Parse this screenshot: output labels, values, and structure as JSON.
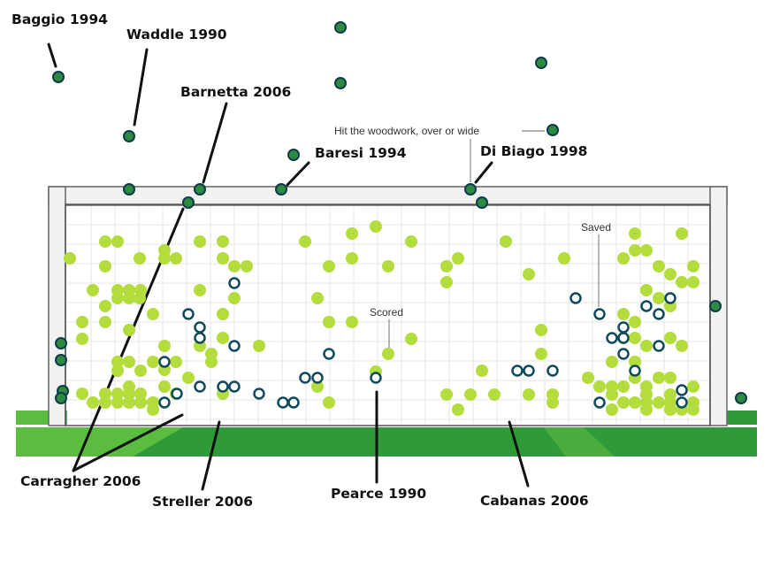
{
  "chart_data": {
    "type": "scatter",
    "title": "",
    "xlabel": "",
    "ylabel": "",
    "legend": {
      "scored": "Scored",
      "saved": "Saved",
      "missed": "Hit the woodwork, over or wide"
    },
    "colors": {
      "scored": "#b2dd3c",
      "saved_stroke": "#0e4a5c",
      "missed_fill": "#2e8a42",
      "missed_stroke": "#0a3c4a",
      "grass_dark": "#2f9a3a",
      "grass_light": "#57b83f",
      "post": "#f2f2f2"
    },
    "scored": [
      [
        79,
        292
      ],
      [
        119,
        273
      ],
      [
        133,
        273
      ],
      [
        186,
        283
      ],
      [
        119,
        301
      ],
      [
        158,
        292
      ],
      [
        186,
        292
      ],
      [
        199,
        292
      ],
      [
        226,
        273
      ],
      [
        252,
        273
      ],
      [
        252,
        292
      ],
      [
        265,
        301
      ],
      [
        279,
        301
      ],
      [
        226,
        328
      ],
      [
        105,
        328
      ],
      [
        133,
        328
      ],
      [
        146,
        328
      ],
      [
        159,
        328
      ],
      [
        133,
        337
      ],
      [
        146,
        337
      ],
      [
        158,
        337
      ],
      [
        119,
        346
      ],
      [
        265,
        337
      ],
      [
        345,
        273
      ],
      [
        398,
        264
      ],
      [
        425,
        256
      ],
      [
        465,
        273
      ],
      [
        372,
        301
      ],
      [
        398,
        292
      ],
      [
        439,
        301
      ],
      [
        359,
        337
      ],
      [
        93,
        364
      ],
      [
        119,
        364
      ],
      [
        173,
        355
      ],
      [
        252,
        355
      ],
      [
        372,
        364
      ],
      [
        398,
        364
      ],
      [
        93,
        383
      ],
      [
        146,
        373
      ],
      [
        186,
        391
      ],
      [
        226,
        391
      ],
      [
        239,
        400
      ],
      [
        252,
        382
      ],
      [
        293,
        391
      ],
      [
        133,
        409
      ],
      [
        146,
        409
      ],
      [
        173,
        409
      ],
      [
        159,
        419
      ],
      [
        199,
        409
      ],
      [
        213,
        427
      ],
      [
        239,
        409
      ],
      [
        133,
        419
      ],
      [
        146,
        437
      ],
      [
        186,
        437
      ],
      [
        252,
        445
      ],
      [
        199,
        445
      ],
      [
        93,
        445
      ],
      [
        105,
        455
      ],
      [
        119,
        445
      ],
      [
        119,
        455
      ],
      [
        133,
        445
      ],
      [
        146,
        445
      ],
      [
        133,
        455
      ],
      [
        146,
        455
      ],
      [
        159,
        445
      ],
      [
        159,
        455
      ],
      [
        173,
        455
      ],
      [
        173,
        463
      ],
      [
        186,
        418
      ],
      [
        372,
        455
      ],
      [
        359,
        437
      ],
      [
        439,
        400
      ],
      [
        465,
        383
      ],
      [
        425,
        420
      ],
      [
        505,
        301
      ],
      [
        518,
        292
      ],
      [
        572,
        273
      ],
      [
        505,
        319
      ],
      [
        598,
        310
      ],
      [
        638,
        292
      ],
      [
        612,
        373
      ],
      [
        612,
        400
      ],
      [
        545,
        419
      ],
      [
        505,
        446
      ],
      [
        532,
        446
      ],
      [
        559,
        446
      ],
      [
        598,
        446
      ],
      [
        625,
        446
      ],
      [
        625,
        455
      ],
      [
        518,
        463
      ],
      [
        718,
        264
      ],
      [
        771,
        264
      ],
      [
        705,
        292
      ],
      [
        718,
        283
      ],
      [
        731,
        283
      ],
      [
        745,
        301
      ],
      [
        758,
        310
      ],
      [
        784,
        301
      ],
      [
        771,
        319
      ],
      [
        784,
        319
      ],
      [
        731,
        328
      ],
      [
        745,
        337
      ],
      [
        758,
        346
      ],
      [
        705,
        355
      ],
      [
        718,
        364
      ],
      [
        705,
        382
      ],
      [
        718,
        382
      ],
      [
        731,
        391
      ],
      [
        758,
        382
      ],
      [
        771,
        391
      ],
      [
        665,
        427
      ],
      [
        678,
        437
      ],
      [
        692,
        437
      ],
      [
        692,
        446
      ],
      [
        705,
        437
      ],
      [
        718,
        409
      ],
      [
        692,
        409
      ],
      [
        718,
        427
      ],
      [
        731,
        437
      ],
      [
        731,
        446
      ],
      [
        745,
        427
      ],
      [
        758,
        427
      ],
      [
        758,
        446
      ],
      [
        784,
        437
      ],
      [
        705,
        455
      ],
      [
        718,
        455
      ],
      [
        731,
        455
      ],
      [
        692,
        463
      ],
      [
        731,
        463
      ],
      [
        758,
        455
      ],
      [
        758,
        463
      ],
      [
        771,
        463
      ],
      [
        784,
        463
      ],
      [
        784,
        455
      ],
      [
        745,
        455
      ]
    ],
    "saved": [
      [
        265,
        320
      ],
      [
        213,
        355
      ],
      [
        226,
        370
      ],
      [
        226,
        382
      ],
      [
        265,
        391
      ],
      [
        186,
        409
      ],
      [
        200,
        445
      ],
      [
        186,
        455
      ],
      [
        226,
        437
      ],
      [
        252,
        437
      ],
      [
        265,
        437
      ],
      [
        293,
        445
      ],
      [
        345,
        427
      ],
      [
        359,
        427
      ],
      [
        372,
        400
      ],
      [
        320,
        455
      ],
      [
        332,
        455
      ],
      [
        425,
        427
      ],
      [
        585,
        419
      ],
      [
        598,
        419
      ],
      [
        625,
        419
      ],
      [
        651,
        337
      ],
      [
        678,
        355
      ],
      [
        692,
        382
      ],
      [
        705,
        370
      ],
      [
        705,
        382
      ],
      [
        705,
        400
      ],
      [
        718,
        419
      ],
      [
        731,
        346
      ],
      [
        745,
        355
      ],
      [
        758,
        337
      ],
      [
        745,
        391
      ],
      [
        771,
        441
      ],
      [
        771,
        455
      ],
      [
        678,
        455
      ]
    ],
    "missed": [
      [
        385,
        31
      ],
      [
        612,
        71
      ],
      [
        385,
        94
      ],
      [
        625,
        147
      ],
      [
        332,
        175
      ],
      [
        66,
        87
      ],
      [
        146,
        154
      ],
      [
        146,
        214
      ],
      [
        226,
        214
      ],
      [
        318,
        214
      ],
      [
        532,
        214
      ],
      [
        545,
        229
      ],
      [
        213,
        229
      ],
      [
        809,
        346
      ],
      [
        838,
        450
      ],
      [
        69,
        388
      ],
      [
        69,
        407
      ],
      [
        71,
        442
      ],
      [
        69,
        450
      ]
    ],
    "labeled_penalties": [
      {
        "name": "Baggio 1994"
      },
      {
        "name": "Waddle 1990"
      },
      {
        "name": "Barnetta 2006"
      },
      {
        "name": "Baresi 1994"
      },
      {
        "name": "Di Biago 1998"
      },
      {
        "name": "Carragher 2006"
      },
      {
        "name": "Streller 2006"
      },
      {
        "name": "Pearce 1990"
      },
      {
        "name": "Cabanas 2006"
      }
    ]
  }
}
